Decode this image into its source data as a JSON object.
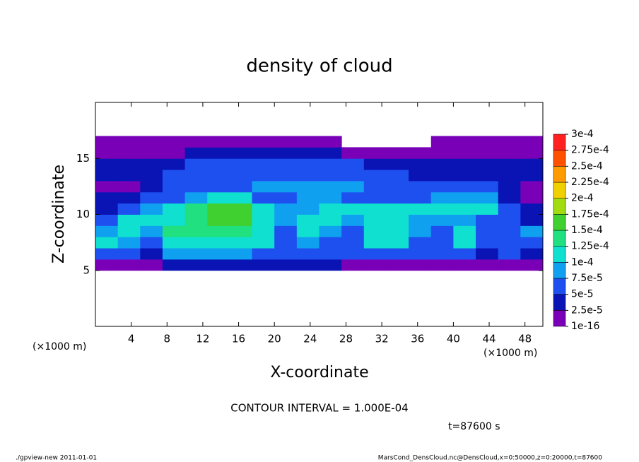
{
  "chart_data": {
    "type": "heatmap",
    "title": "density of cloud",
    "x_label": "X-coordinate",
    "y_label": "Z-coordinate",
    "x_unit": "(×1000 m)",
    "y_unit": "(×1000 m)",
    "xlim": [
      0,
      50
    ],
    "ylim": [
      0,
      20
    ],
    "xticks": [
      4,
      8,
      12,
      16,
      20,
      24,
      28,
      32,
      36,
      40,
      44,
      48
    ],
    "yticks": [
      5,
      10,
      15
    ],
    "xbins": [
      0,
      2.5,
      5,
      7.5,
      10,
      12.5,
      15,
      17.5,
      20,
      22.5,
      25,
      27.5,
      30,
      32.5,
      35,
      37.5,
      40,
      42.5,
      45,
      47.5,
      50
    ],
    "ybins": [
      5,
      6,
      7,
      8,
      9,
      10,
      11,
      12,
      13,
      14,
      15,
      16,
      17
    ],
    "z": [
      [
        1e-05,
        1e-05,
        1e-05,
        3e-05,
        3e-05,
        3e-05,
        3e-05,
        3e-05,
        3e-05,
        3e-05,
        3e-05,
        2e-05,
        1e-05,
        1e-05,
        1e-05,
        1e-05,
        1e-05,
        1e-05,
        1e-05,
        1e-05
      ],
      [
        6e-05,
        5e-05,
        4e-05,
        8e-05,
        8e-05,
        8e-05,
        8e-05,
        7e-05,
        6e-05,
        6e-05,
        6e-05,
        5e-05,
        6e-05,
        6e-05,
        5e-05,
        5e-05,
        5e-05,
        4e-05,
        5e-05,
        4e-05
      ],
      [
        0.000105,
        9e-05,
        6e-05,
        0.000115,
        0.00012,
        0.00012,
        0.000115,
        0.0001,
        7e-05,
        8e-05,
        7e-05,
        6e-05,
        0.000105,
        0.000105,
        7e-05,
        6e-05,
        0.000105,
        6e-05,
        6e-05,
        7e-05
      ],
      [
        8e-05,
        0.00011,
        9e-05,
        0.000125,
        0.00014,
        0.00014,
        0.000135,
        0.00011,
        7e-05,
        0.000105,
        8e-05,
        7e-05,
        0.00011,
        0.00011,
        8e-05,
        7e-05,
        0.000105,
        7e-05,
        6e-05,
        8e-05
      ],
      [
        5e-05,
        0.00011,
        0.000115,
        0.000105,
        0.00014,
        0.000155,
        0.00015,
        0.00012,
        8e-05,
        0.00012,
        0.00012,
        9e-05,
        0.00011,
        0.00012,
        9e-05,
        8e-05,
        9e-05,
        6e-05,
        5e-05,
        4e-05
      ],
      [
        3e-05,
        6e-05,
        9e-05,
        0.00011,
        0.00013,
        0.00015,
        0.00015,
        0.00011,
        8e-05,
        9e-05,
        0.00011,
        0.00011,
        0.0001,
        0.00011,
        0.000115,
        0.00012,
        0.000115,
        0.0001,
        5e-05,
        3e-05
      ],
      [
        3e-05,
        3e-05,
        5e-05,
        7e-05,
        9e-05,
        0.000105,
        0.000105,
        7e-05,
        7e-05,
        8e-05,
        8e-05,
        7e-05,
        7e-05,
        7e-05,
        7e-05,
        9e-05,
        9e-05,
        9e-05,
        4e-05,
        2e-05
      ],
      [
        1.5e-05,
        1.5e-05,
        3e-05,
        7e-05,
        7e-05,
        7e-05,
        7e-05,
        8e-05,
        8e-05,
        8e-05,
        8e-05,
        8e-05,
        7e-05,
        7e-05,
        6e-05,
        6e-05,
        6e-05,
        6e-05,
        3e-05,
        1.5e-05
      ],
      [
        3e-05,
        3e-05,
        4e-05,
        5e-05,
        6e-05,
        6e-05,
        6e-05,
        6e-05,
        6e-05,
        6e-05,
        6e-05,
        6e-05,
        5e-05,
        5e-05,
        4e-05,
        4e-05,
        4e-05,
        4e-05,
        4e-05,
        4e-05
      ],
      [
        3e-05,
        3e-05,
        3e-05,
        4e-05,
        5e-05,
        5e-05,
        5e-05,
        5e-05,
        5e-05,
        5e-05,
        5e-05,
        5e-05,
        4e-05,
        4e-05,
        3e-05,
        3e-05,
        3e-05,
        3e-05,
        3e-05,
        3e-05
      ],
      [
        1e-05,
        1e-05,
        1e-05,
        1e-05,
        3e-05,
        3e-05,
        3e-05,
        3e-05,
        3e-05,
        3e-05,
        3e-05,
        1e-05,
        1e-05,
        1e-05,
        1e-05,
        1e-05,
        1e-05,
        1e-05,
        1e-05,
        1e-05
      ],
      [
        1e-05,
        1e-05,
        1e-05,
        1e-05,
        1e-05,
        1e-05,
        1e-05,
        1e-05,
        1e-05,
        1e-05,
        1e-05,
        null,
        null,
        null,
        null,
        1e-05,
        1e-05,
        1e-05,
        1e-05,
        1e-05
      ]
    ],
    "colorbar": {
      "ticks": [
        {
          "value": 1e-16,
          "label": "1e-16"
        },
        {
          "value": 2.5e-05,
          "label": "2.5e-5"
        },
        {
          "value": 5e-05,
          "label": "5e-5"
        },
        {
          "value": 7.5e-05,
          "label": "7.5e-5"
        },
        {
          "value": 0.0001,
          "label": "1e-4"
        },
        {
          "value": 0.000125,
          "label": "1.25e-4"
        },
        {
          "value": 0.00015,
          "label": "1.5e-4"
        },
        {
          "value": 0.000175,
          "label": "1.75e-4"
        },
        {
          "value": 0.0002,
          "label": "2e-4"
        },
        {
          "value": 0.000225,
          "label": "2.25e-4"
        },
        {
          "value": 0.00025,
          "label": "2.5e-4"
        },
        {
          "value": 0.000275,
          "label": "2.75e-4"
        },
        {
          "value": 0.0003,
          "label": "3e-4"
        }
      ],
      "colors": [
        "#7a00b8",
        "#0a14b4",
        "#1e50f0",
        "#10a0f0",
        "#10e0d0",
        "#20e080",
        "#40d030",
        "#a0dc10",
        "#f0d000",
        "#ff9a00",
        "#ff5000",
        "#ff2020"
      ]
    },
    "contour_note": "CONTOUR INTERVAL = 1.000E-04",
    "time_note": "t=87600 s",
    "footer_left": "./gpview-new  2011-01-01",
    "footer_right": "MarsCond_DensCloud.nc@DensCloud,x=0:50000,z=0:20000,t=87600"
  }
}
